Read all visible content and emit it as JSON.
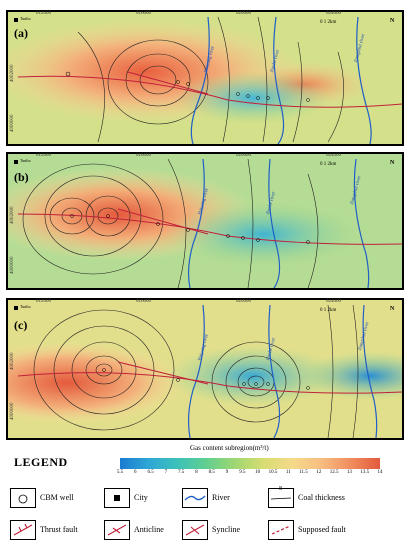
{
  "panels": [
    {
      "label": "(a)",
      "city": "Tunliu"
    },
    {
      "label": "(b)",
      "city": "Tunliu"
    },
    {
      "label": "(c)",
      "city": "Tunliu"
    }
  ],
  "x_ticks": [
    "612000",
    "616000",
    "620000",
    "624000",
    "628000"
  ],
  "y_ticks": [
    "4000000",
    "4002000"
  ],
  "rivers": [
    "Baiyang river",
    "Jiaohe river",
    "Jiangshui river"
  ],
  "scale_labels": [
    "0",
    "1",
    "2km"
  ],
  "north_label": "N",
  "legend": {
    "title": "LEGEND",
    "colorbar_title": "Gas content subregion(m³/t)",
    "colorbar_ticks": [
      "5.5",
      "6",
      "6.5",
      "7",
      "7.5",
      "8",
      "8.5",
      "9",
      "9.5",
      "10",
      "10.5",
      "11",
      "11.5",
      "12",
      "12.5",
      "13",
      "13.5",
      "14"
    ],
    "items": {
      "cbm_well": "CBM well",
      "city": "City",
      "river": "River",
      "coal_thickness": "Coal thickness",
      "thrust_fault": "Thrust fault",
      "anticline": "Anticline",
      "syncline": "Syncline",
      "supposed_fault": "Supposed fault"
    },
    "coal_thickness_sample": "8"
  }
}
